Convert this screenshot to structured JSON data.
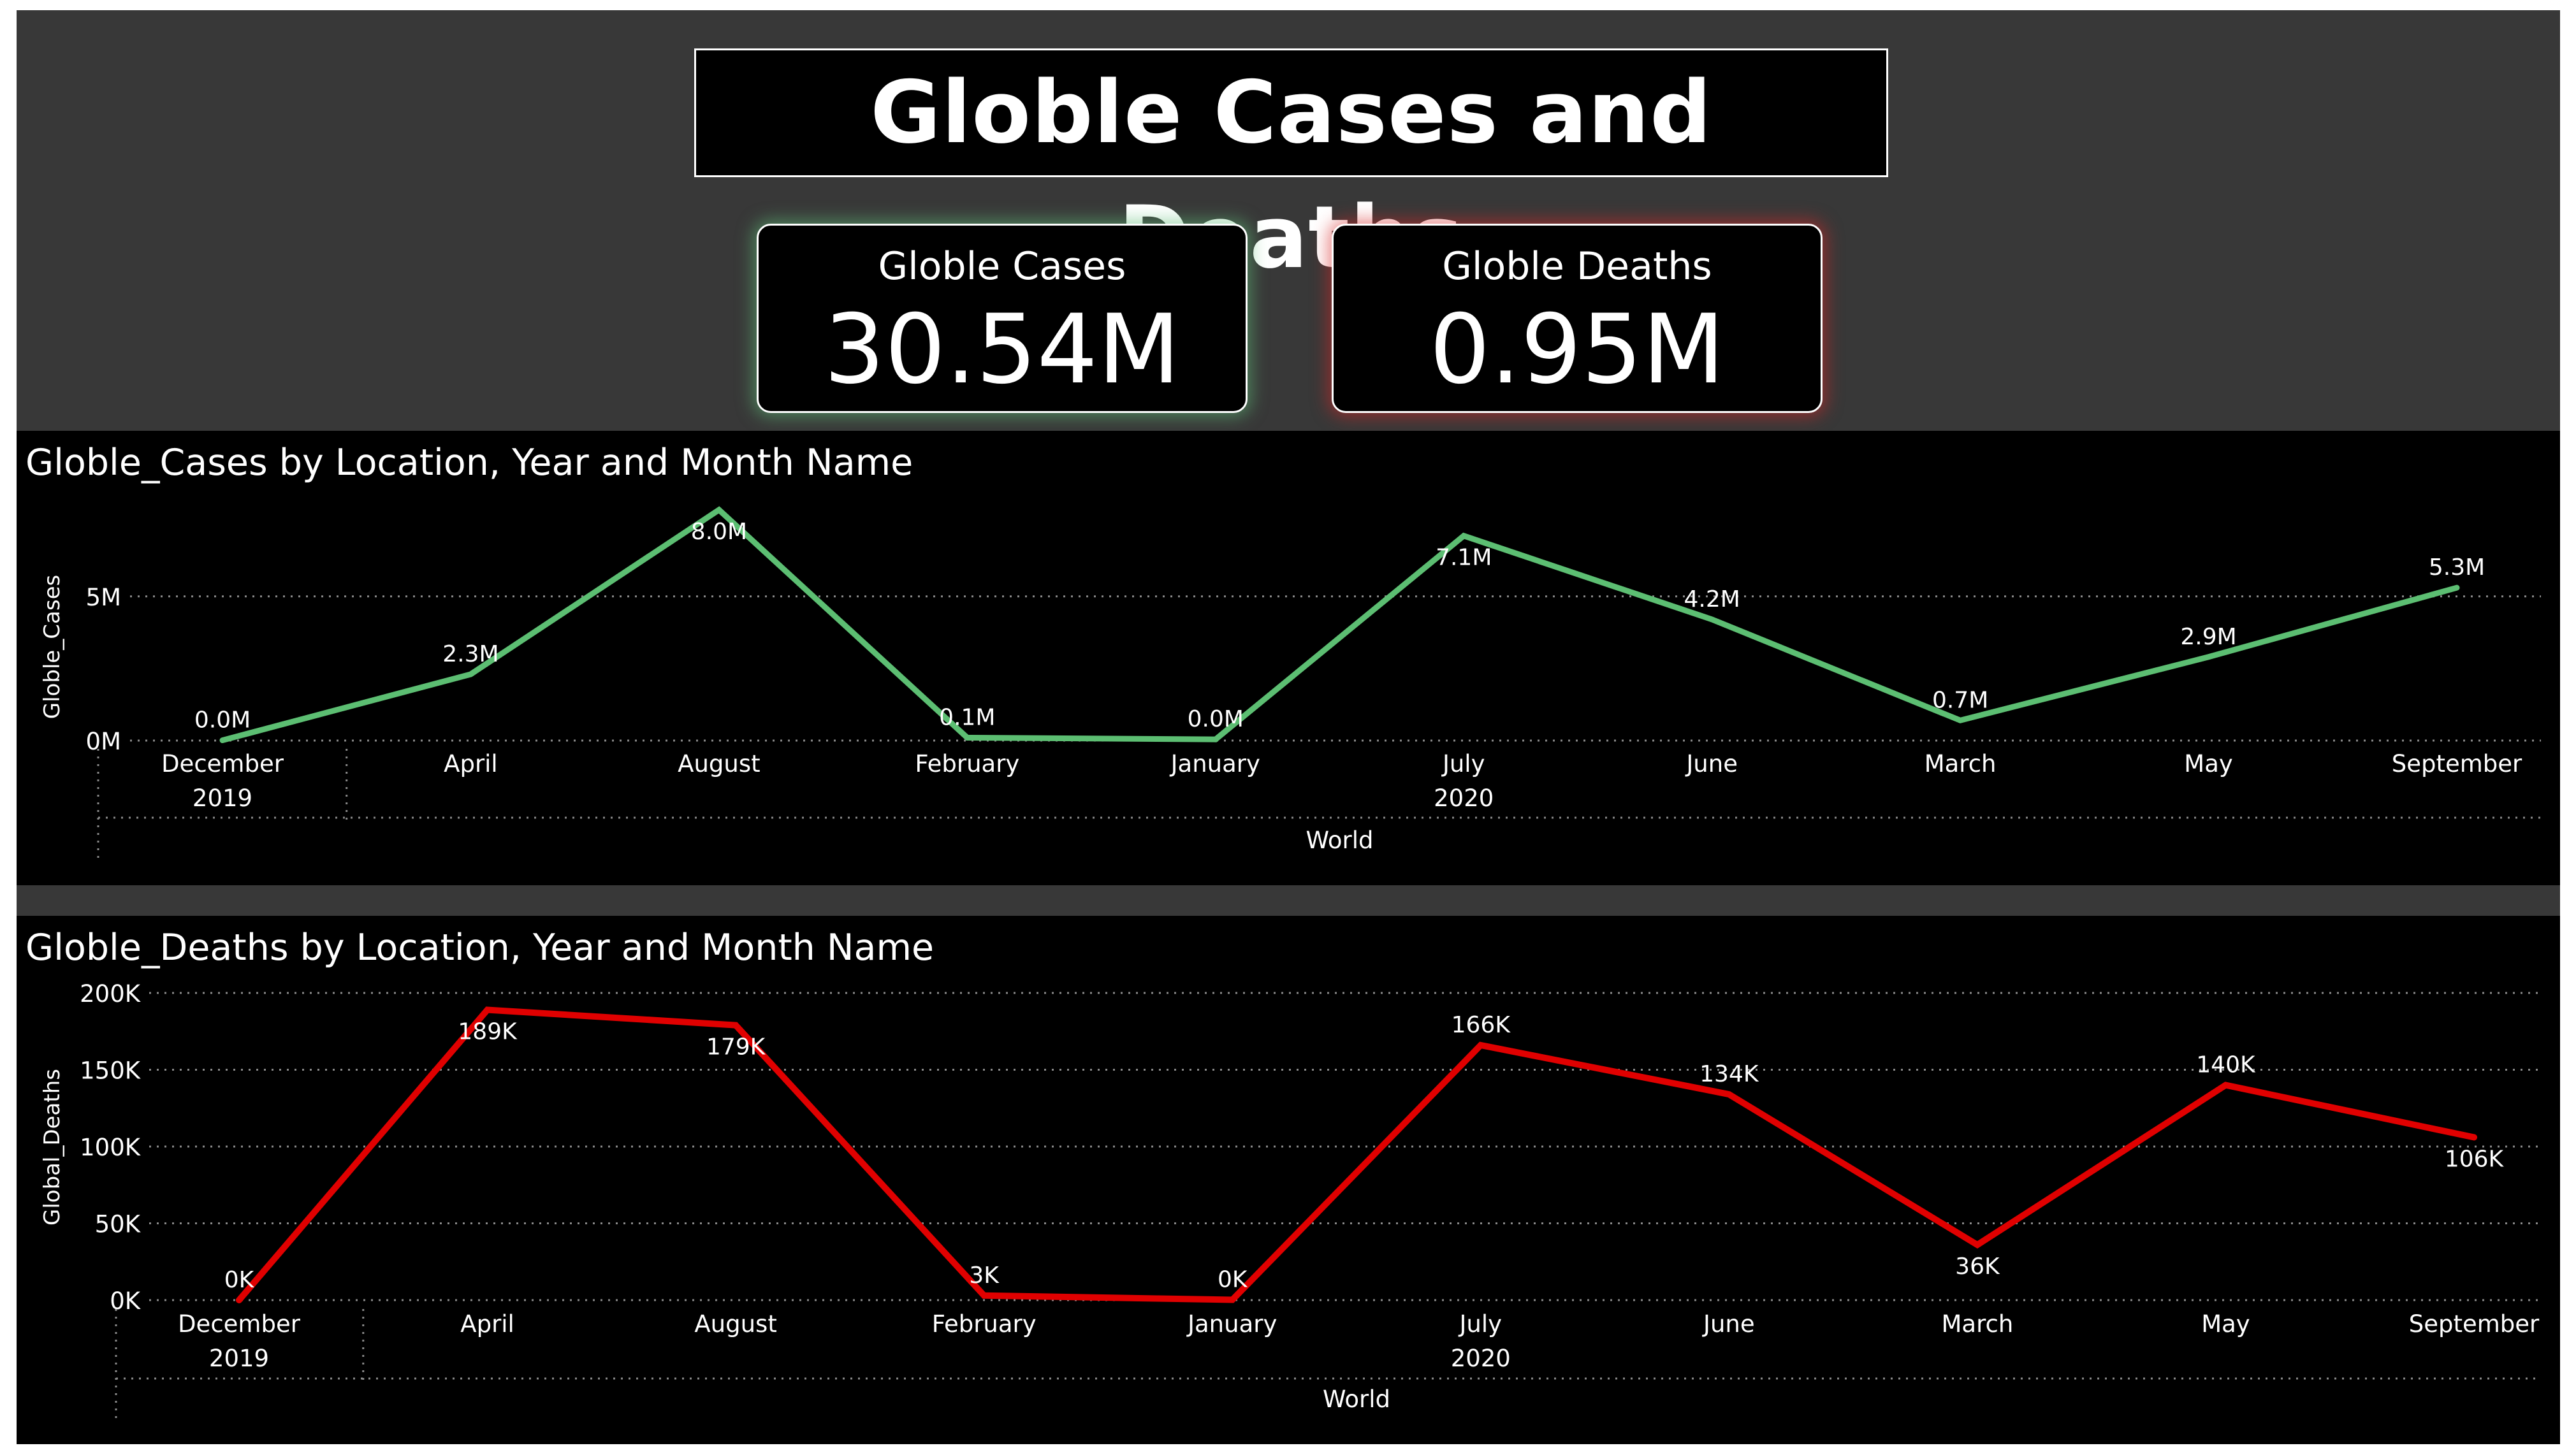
{
  "header": {
    "title": "Globle Cases and Deaths"
  },
  "cards": {
    "cases": {
      "label": "Globle Cases",
      "value": "30.54M"
    },
    "deaths": {
      "label": "Globle Deaths",
      "value": "0.95M"
    }
  },
  "colors": {
    "background": "#383838",
    "panel": "#000000",
    "cases_line": "#5cbe72",
    "deaths_line": "#e00000",
    "text": "#ffffff"
  },
  "chart_data": [
    {
      "type": "line",
      "title": "Globle_Cases by Location, Year and Month Name",
      "ylabel": "Globle_Cases",
      "xlabel": "World",
      "years": [
        {
          "label": "2019",
          "span": [
            0,
            0
          ]
        },
        {
          "label": "2020",
          "span": [
            1,
            9
          ]
        }
      ],
      "categories": [
        "December",
        "April",
        "August",
        "February",
        "January",
        "July",
        "June",
        "March",
        "May",
        "September"
      ],
      "series": [
        {
          "values": [
            0.01,
            2.3,
            8.0,
            0.1,
            0.04,
            7.1,
            4.2,
            0.7,
            2.9,
            5.3
          ],
          "data_labels": [
            "0.0M",
            "2.3M",
            "8.0M",
            "0.1M",
            "0.0M",
            "7.1M",
            "4.2M",
            "0.7M",
            "2.9M",
            "5.3M"
          ],
          "color": "#5cbe72"
        }
      ],
      "y_unit": "millions",
      "ylim": [
        0,
        8.0
      ],
      "yticks": [
        0,
        5
      ],
      "ytick_labels": [
        "0M",
        "5M"
      ],
      "grid": true
    },
    {
      "type": "line",
      "title": "Globle_Deaths by Location, Year and Month Name",
      "ylabel": "Global_Deaths",
      "xlabel": "World",
      "years": [
        {
          "label": "2019",
          "span": [
            0,
            0
          ]
        },
        {
          "label": "2020",
          "span": [
            1,
            9
          ]
        }
      ],
      "categories": [
        "December",
        "April",
        "August",
        "February",
        "January",
        "July",
        "June",
        "March",
        "May",
        "September"
      ],
      "series": [
        {
          "values": [
            0,
            189000,
            179000,
            3000,
            200,
            166000,
            134000,
            36000,
            140000,
            106000
          ],
          "data_labels": [
            "0K",
            "189K",
            "179K",
            "3K",
            "0K",
            "166K",
            "134K",
            "36K",
            "140K",
            "106K"
          ],
          "color": "#e00000"
        }
      ],
      "ylim": [
        0,
        200000
      ],
      "yticks": [
        0,
        50000,
        100000,
        150000,
        200000
      ],
      "ytick_labels": [
        "0K",
        "50K",
        "100K",
        "150K",
        "200K"
      ],
      "grid": true
    }
  ]
}
